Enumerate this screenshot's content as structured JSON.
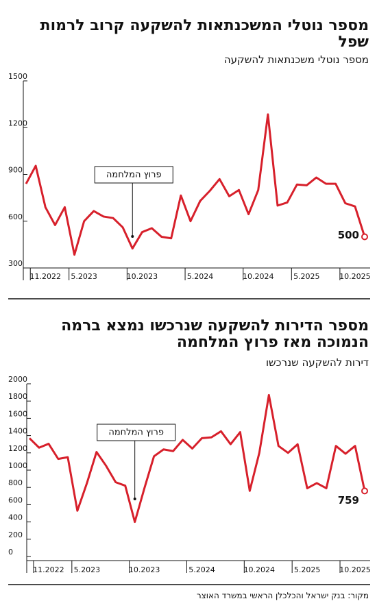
{
  "chart_data": [
    {
      "type": "line",
      "title": "מספר נוטלי המשכנתאות להשקעה קרוב לרמות שפל",
      "subtitle": "מספר נוטלי משכנתאות להשקעה",
      "annotation": "פרוץ המלחמה",
      "categories": [
        null,
        null,
        "11.2022",
        null,
        null,
        null,
        "5.2023",
        null,
        null,
        null,
        null,
        null,
        "10.2023",
        null,
        null,
        null,
        null,
        null,
        "5.2024",
        null,
        null,
        null,
        null,
        null,
        "10.2024",
        null,
        null,
        null,
        null,
        "5.2025",
        null,
        null,
        null,
        null,
        "10.2025",
        null
      ],
      "series": [
        {
          "name": "מספר נוטלי משכנתאות להשקעה",
          "color": "#d7202b",
          "values": [
            840,
            955,
            690,
            575,
            690,
            385,
            600,
            665,
            630,
            620,
            560,
            425,
            530,
            555,
            500,
            490,
            765,
            600,
            730,
            795,
            870,
            760,
            800,
            645,
            800,
            1285,
            700,
            720,
            835,
            830,
            880,
            840,
            840,
            715,
            695,
            500
          ]
        }
      ],
      "end_label": "500",
      "ylim": [
        300,
        1500
      ],
      "yticks": [
        300,
        600,
        900,
        1200,
        1500
      ]
    },
    {
      "type": "line",
      "title": "מספר הדירות להשקעה שנרכשו נמצא ברמה הנמוכה מאז פרוץ המלחמה",
      "subtitle": "דירות להשקעה שנרכשו",
      "annotation": "פרוץ המלחמה",
      "categories": [
        null,
        null,
        "11.2022",
        null,
        null,
        null,
        "5.2023",
        null,
        null,
        null,
        null,
        null,
        "10.2023",
        null,
        null,
        null,
        null,
        null,
        "5.2024",
        null,
        null,
        null,
        null,
        null,
        "10.2024",
        null,
        null,
        null,
        null,
        "5.2025",
        null,
        null,
        null,
        null,
        "10.2025",
        null
      ],
      "series": [
        {
          "name": "דירות להשקעה שנרכשו",
          "color": "#d7202b",
          "values": [
            1370,
            1260,
            1305,
            1130,
            1150,
            530,
            850,
            1210,
            1050,
            860,
            820,
            400,
            790,
            1160,
            1240,
            1220,
            1350,
            1250,
            1370,
            1380,
            1450,
            1300,
            1440,
            760,
            1200,
            1870,
            1280,
            1200,
            1300,
            790,
            850,
            790,
            1280,
            1190,
            1280,
            759
          ]
        }
      ],
      "end_label": "759",
      "ylim": [
        0,
        2000
      ],
      "yticks": [
        0,
        200,
        400,
        600,
        800,
        1000,
        1200,
        1400,
        1600,
        1800,
        2000
      ]
    }
  ],
  "source": "מקור: בנק ישראל והכלכלן הראשי במשרד האוצר"
}
